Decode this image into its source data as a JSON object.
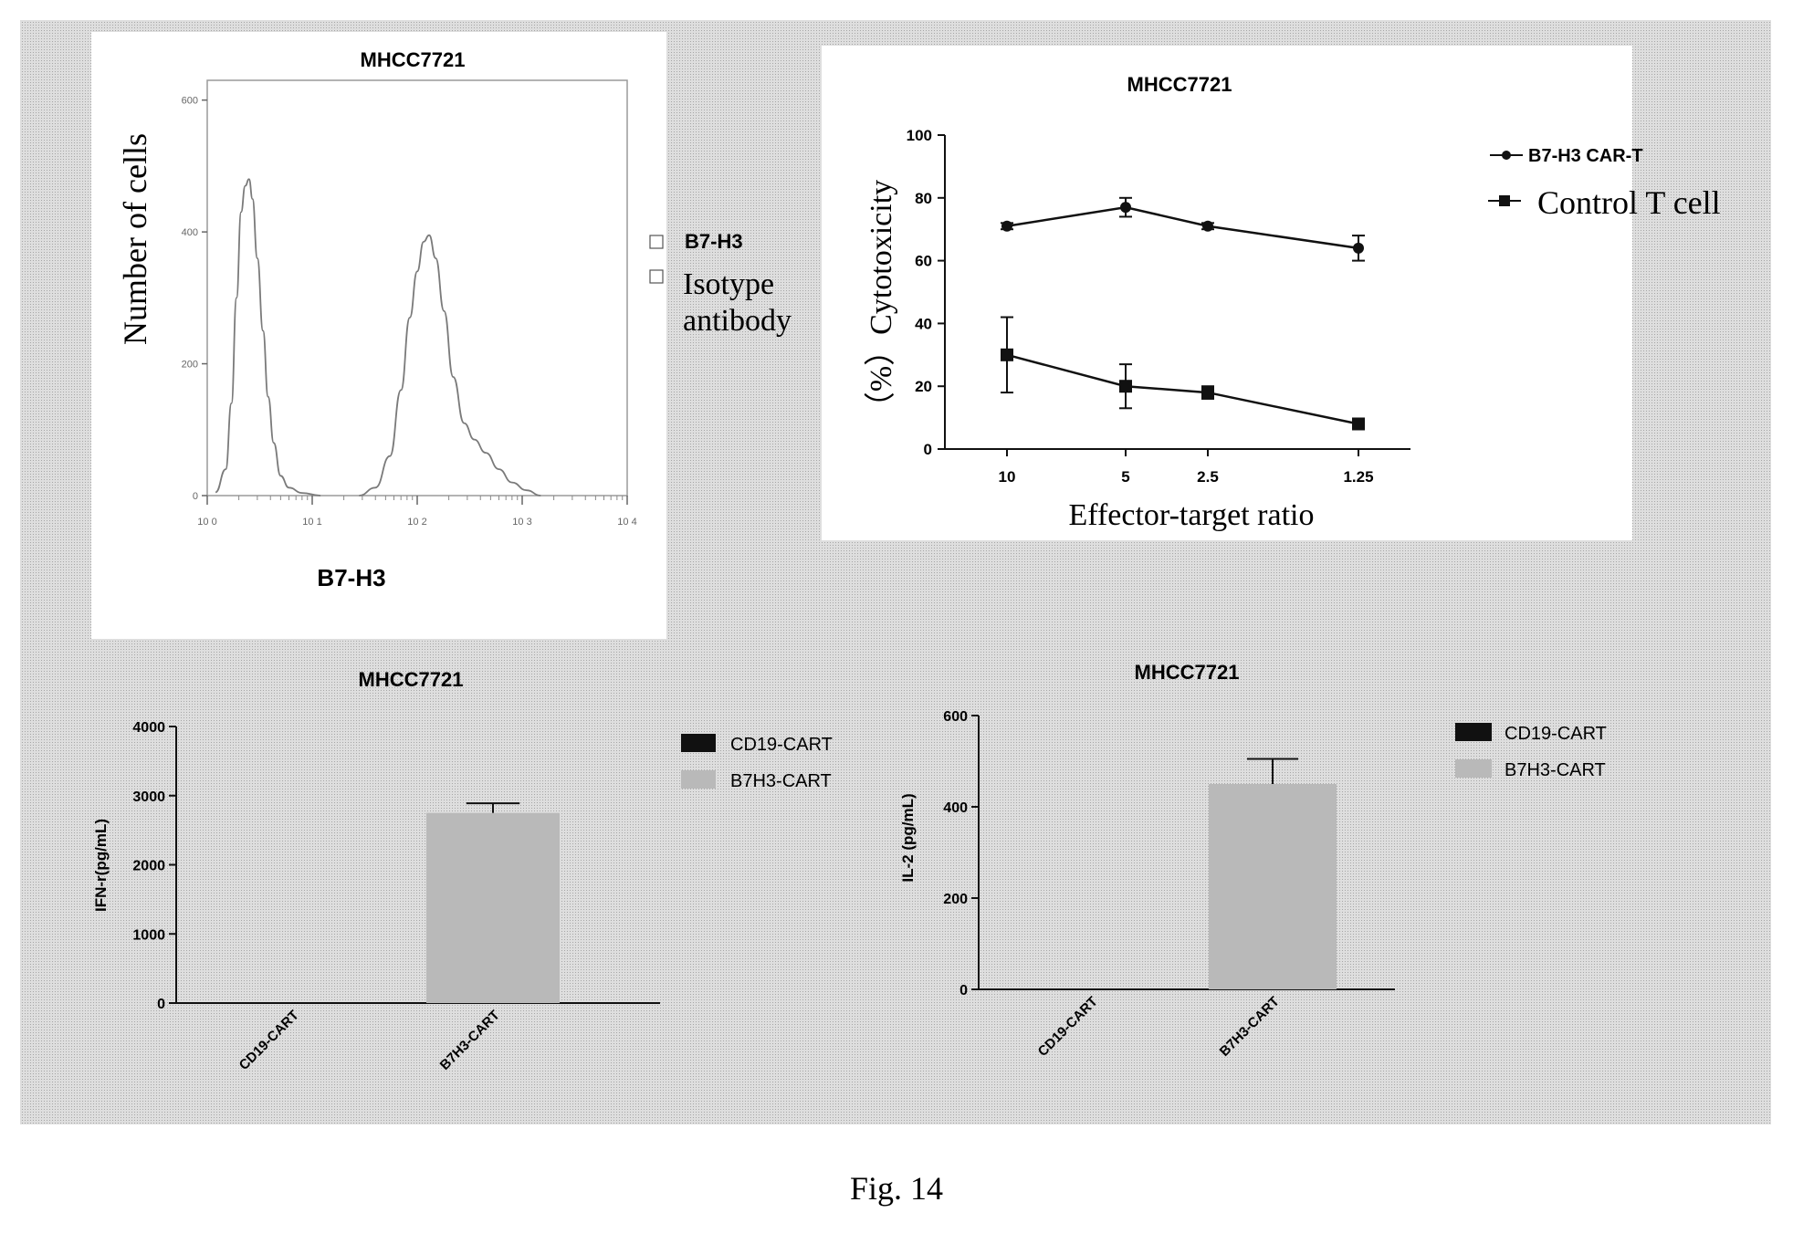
{
  "figure_caption": "Fig. 14",
  "colors": {
    "backdrop": "#d6d6d6",
    "panel": "#ffffff",
    "line": "#111111",
    "bar_b7h3": "#b9b9b9",
    "bar_cd19": "#111111"
  },
  "chart_data": [
    {
      "type": "line",
      "subtype": "flow-cytometry-histogram",
      "title": "MHCC7721",
      "xlabel": "B7-H3",
      "ylabel": "Number of cells",
      "x_scale": "log",
      "xlim": [
        1,
        10000
      ],
      "ylim": [
        0,
        630
      ],
      "x_ticks": [
        "10 0",
        "10 1",
        "10 2",
        "10 3",
        "10 4"
      ],
      "y_ticks": [
        "0",
        "200",
        "400",
        "600"
      ],
      "legend": {
        "placement": "right",
        "items": [
          {
            "label": "B7-H3"
          },
          {
            "label": "Isotype antibody"
          }
        ]
      },
      "series": [
        {
          "name": "Isotype antibody",
          "x": [
            1.2,
            1.5,
            1.7,
            1.9,
            2.1,
            2.3,
            2.5,
            2.7,
            3.0,
            3.4,
            3.8,
            4.3,
            5.0,
            6.0,
            8.0,
            12
          ],
          "y": [
            5,
            40,
            140,
            300,
            430,
            470,
            480,
            450,
            360,
            250,
            150,
            80,
            30,
            12,
            4,
            0
          ]
        },
        {
          "name": "B7-H3",
          "x": [
            28,
            40,
            55,
            70,
            85,
            100,
            115,
            130,
            150,
            180,
            220,
            280,
            350,
            450,
            600,
            800,
            1100,
            1500
          ],
          "y": [
            0,
            12,
            60,
            160,
            270,
            340,
            385,
            395,
            360,
            280,
            180,
            110,
            85,
            65,
            40,
            20,
            8,
            0
          ]
        }
      ]
    },
    {
      "type": "line",
      "title": "MHCC7721",
      "xlabel": "Effector-target ratio",
      "ylabel": "（%）Cytotoxicity",
      "ylim": [
        0,
        100
      ],
      "y_ticks": [
        "0",
        "20",
        "40",
        "60",
        "80",
        "100"
      ],
      "categories": [
        "10",
        "5",
        "2.5",
        "1.25"
      ],
      "legend": {
        "placement": "top-right"
      },
      "series": [
        {
          "name": "B7-H3 CAR-T",
          "marker": "circle",
          "values": [
            71,
            77,
            71,
            64
          ],
          "errors": [
            1,
            3,
            1,
            4
          ]
        },
        {
          "name": "Control T cell",
          "marker": "square",
          "values": [
            30,
            20,
            18,
            8
          ],
          "errors": [
            12,
            7,
            2,
            1
          ]
        }
      ]
    },
    {
      "type": "bar",
      "title": "MHCC7721",
      "xlabel": "",
      "ylabel": "IFN-r(pg/mL)",
      "ylim": [
        0,
        4000
      ],
      "y_ticks": [
        "0",
        "1000",
        "2000",
        "3000",
        "4000"
      ],
      "categories": [
        "CD19-CART",
        "B7H3-CART"
      ],
      "legend": {
        "placement": "top-right",
        "items": [
          {
            "label": "CD19-CART"
          },
          {
            "label": "B7H3-CART"
          }
        ]
      },
      "values": [
        0,
        2750
      ],
      "errors": [
        0,
        140
      ]
    },
    {
      "type": "bar",
      "title": "MHCC7721",
      "xlabel": "",
      "ylabel": "IL-2 (pg/mL)",
      "ylim": [
        0,
        600
      ],
      "y_ticks": [
        "0",
        "200",
        "400",
        "600"
      ],
      "categories": [
        "CD19-CART",
        "B7H3-CART"
      ],
      "legend": {
        "placement": "top-right",
        "items": [
          {
            "label": "CD19-CART"
          },
          {
            "label": "B7H3-CART"
          }
        ]
      },
      "values": [
        0,
        450
      ],
      "errors": [
        0,
        55
      ]
    }
  ]
}
